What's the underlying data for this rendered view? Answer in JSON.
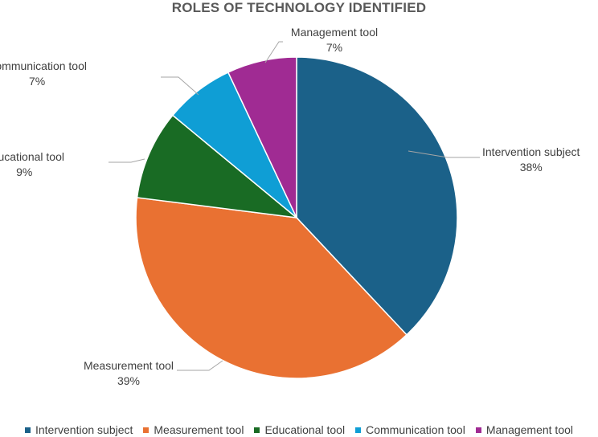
{
  "chart_data": {
    "type": "pie",
    "title": "ROLES OF TECHNOLOGY IDENTIFIED",
    "slices": [
      {
        "name": "Intervention subject",
        "value": 38,
        "label": "38%",
        "color": "#1B6189"
      },
      {
        "name": "Measurement tool",
        "value": 39,
        "label": "39%",
        "color": "#E97132"
      },
      {
        "name": "Educational tool",
        "value": 9,
        "label": "9%",
        "color": "#196B24"
      },
      {
        "name": "Communication tool",
        "value": 7,
        "label": "7%",
        "color": "#0F9ED5"
      },
      {
        "name": "Management tool",
        "value": 7,
        "label": "7%",
        "color": "#A02B93"
      }
    ],
    "legend_position": "bottom"
  }
}
